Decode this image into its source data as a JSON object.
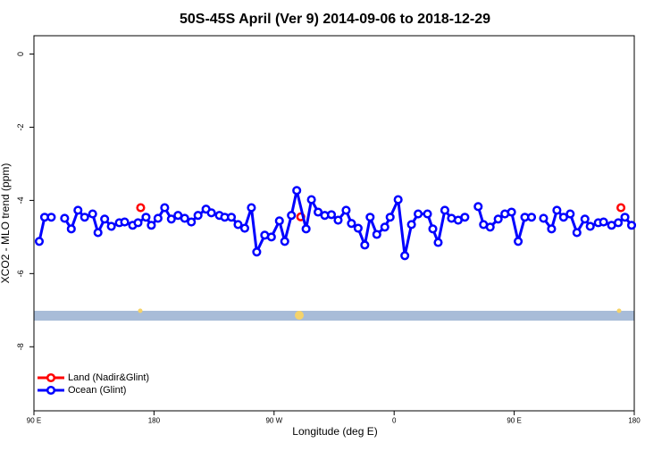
{
  "chart_data": {
    "type": "line",
    "title": "50S-45S April (Ver 9)   2014-09-06 to 2018-12-29",
    "x_label": "Longitude (deg E)",
    "y_label": "XCO2 - MLO trend (ppm)",
    "xlim": [
      90,
      540
    ],
    "ylim": [
      -9.75,
      0.5
    ],
    "xticks": [
      {
        "value": 90,
        "label": "90 E"
      },
      {
        "value": 180,
        "label": "180"
      },
      {
        "value": 270,
        "label": "90 W"
      },
      {
        "value": 360,
        "label": "0"
      },
      {
        "value": 450,
        "label": "90 E"
      },
      {
        "value": 540,
        "label": "180"
      }
    ],
    "yticks": [
      0,
      -2,
      -4,
      -6,
      -8
    ],
    "legend": "bottomleft",
    "series": [
      {
        "name": "Land (Nadir&Glint)",
        "color": "#ff0000",
        "line": false,
        "x": [
          170,
          290,
          530
        ],
        "values": [
          -4.2,
          -4.45,
          -4.2
        ]
      },
      {
        "name": "Ocean (Glint)",
        "color": "#0000ff",
        "line": true,
        "x": [
          94,
          98,
          103,
          108,
          113,
          118,
          123,
          128,
          134,
          138,
          143,
          148,
          154,
          158,
          164,
          168,
          174,
          178,
          183,
          188,
          193,
          198,
          203,
          208,
          213,
          219,
          223,
          229,
          233,
          238,
          243,
          248,
          253,
          257,
          263,
          268,
          274,
          278,
          283,
          287,
          294,
          298,
          303,
          308,
          313,
          318,
          324,
          328,
          333,
          338,
          342,
          347,
          353,
          357,
          363,
          368,
          373,
          378,
          385,
          389,
          393,
          398,
          403,
          408,
          413,
          417,
          423,
          427,
          432,
          438,
          443,
          448,
          453,
          458,
          463,
          468,
          472,
          478,
          482,
          487,
          492,
          497,
          503,
          507,
          513,
          517,
          523,
          528,
          533,
          538
        ],
        "values": [
          -5.12,
          -4.46,
          -4.46,
          null,
          -4.49,
          -4.78,
          -4.27,
          -4.46,
          -4.37,
          -4.88,
          -4.51,
          -4.71,
          -4.61,
          -4.59,
          -4.68,
          -4.61,
          -4.46,
          -4.68,
          -4.49,
          -4.2,
          -4.51,
          -4.41,
          -4.49,
          -4.59,
          -4.41,
          -4.24,
          -4.34,
          -4.41,
          -4.46,
          -4.46,
          -4.66,
          -4.76,
          -4.2,
          -5.41,
          -4.95,
          -5.0,
          -4.56,
          -5.12,
          -4.41,
          -3.73,
          -4.78,
          -3.98,
          -4.32,
          -4.41,
          -4.39,
          -4.54,
          -4.27,
          -4.63,
          -4.76,
          -5.22,
          -4.46,
          -4.93,
          -4.73,
          -4.46,
          -3.98,
          -5.51,
          -4.66,
          -4.37,
          -4.37,
          -4.78,
          -5.15,
          -4.27,
          -4.49,
          -4.54,
          -4.46,
          null,
          -4.17,
          -4.66,
          -4.73,
          -4.51,
          -4.37,
          -4.32,
          -5.12,
          -4.46,
          -4.46,
          null,
          -4.49,
          -4.78,
          -4.27,
          -4.46,
          -4.37,
          -4.88,
          -4.51,
          -4.71,
          -4.61,
          -4.59,
          -4.68,
          -4.61,
          -4.46,
          -4.68
        ]
      }
    ]
  }
}
